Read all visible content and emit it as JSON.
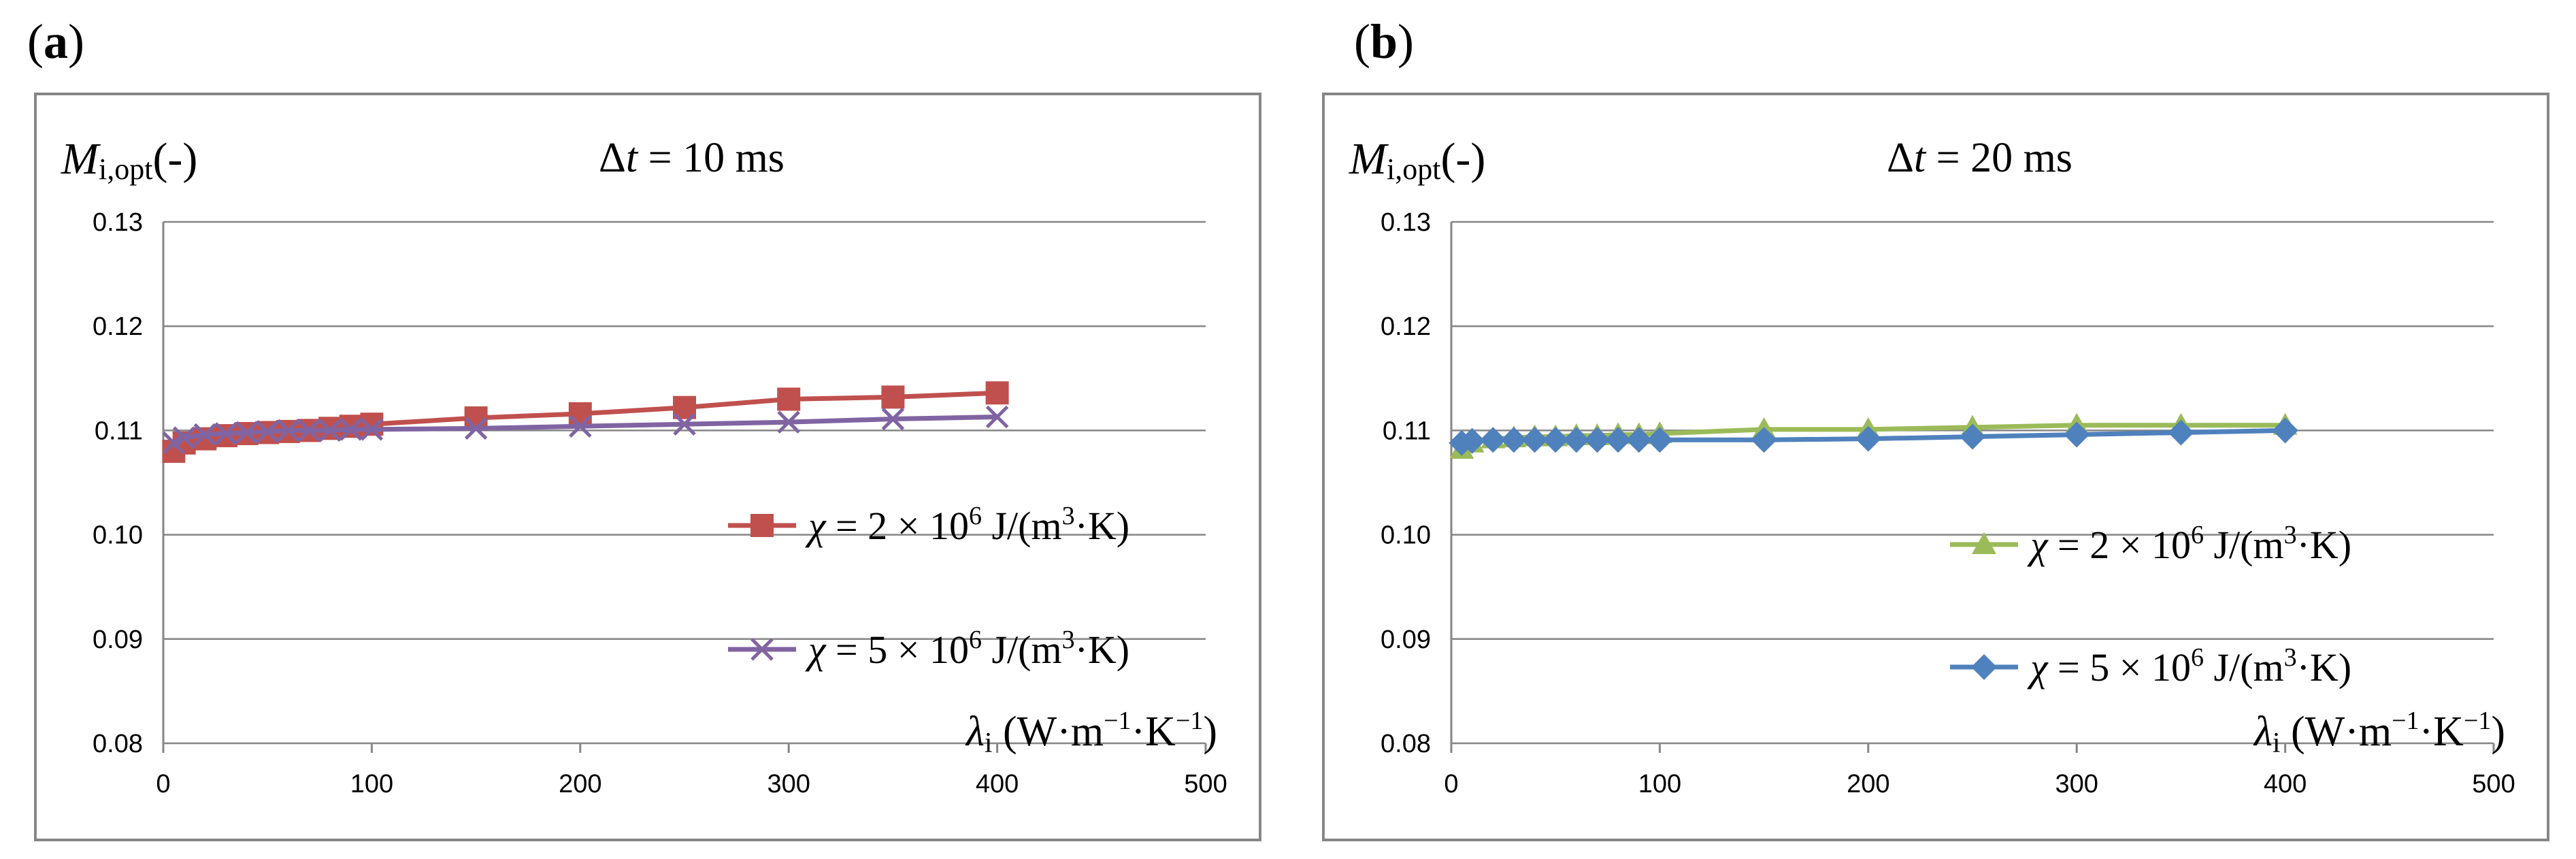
{
  "panels": {
    "a": {
      "label": "a"
    },
    "b": {
      "label": "b"
    }
  },
  "chart_data": [
    {
      "type": "line",
      "panel": "a",
      "title": "Δt = 10 ms",
      "title_prefix": "Δ",
      "title_var": "t",
      "title_rest": " = 10 ms",
      "ylabel_main": "M",
      "ylabel_sub": "i,opt",
      "ylabel_suffix": "(-)",
      "xlabel_main": "λ",
      "xlabel_sub": "i",
      "xlabel_units": " (W·m",
      "xlabel_exp1": "−1",
      "xlabel_mid": "·K",
      "xlabel_exp2": "−1",
      "xlabel_end": ")",
      "xlim": [
        0,
        500
      ],
      "ylim": [
        0.08,
        0.13
      ],
      "xticks": [
        "0",
        "100",
        "200",
        "300",
        "400",
        "500"
      ],
      "yticks": [
        "0.08",
        "0.09",
        "0.10",
        "0.11",
        "0.12",
        "0.13"
      ],
      "grid": true,
      "series": [
        {
          "name": "χ = 2 × 10⁶ J/(m³·K)",
          "chi": "χ",
          "eq": " = 2 × 10",
          "exp": "6",
          "unit": " J/(m",
          "unit_exp": "3",
          "unit_end": "·K)",
          "color": "#c0504d",
          "marker": "square",
          "x": [
            5,
            10,
            20,
            30,
            40,
            50,
            60,
            70,
            80,
            90,
            100,
            150,
            200,
            250,
            300,
            350,
            400
          ],
          "y": [
            0.108,
            0.1088,
            0.1092,
            0.1095,
            0.1097,
            0.1098,
            0.1099,
            0.11,
            0.1102,
            0.1104,
            0.1106,
            0.1112,
            0.1116,
            0.1122,
            0.113,
            0.1132,
            0.1136
          ]
        },
        {
          "name": "χ = 5 × 10⁶ J/(m³·K)",
          "chi": "χ",
          "eq": " = 5 × 10",
          "exp": "6",
          "unit": " J/(m",
          "unit_exp": "3",
          "unit_end": "·K)",
          "color": "#8064a2",
          "marker": "x",
          "x": [
            5,
            10,
            20,
            30,
            40,
            50,
            60,
            70,
            80,
            90,
            100,
            150,
            200,
            250,
            300,
            350,
            400
          ],
          "y": [
            0.1088,
            0.1093,
            0.1096,
            0.1097,
            0.1098,
            0.1099,
            0.11,
            0.11,
            0.11,
            0.1101,
            0.1101,
            0.1102,
            0.1104,
            0.1106,
            0.1108,
            0.1111,
            0.1113
          ]
        }
      ]
    },
    {
      "type": "line",
      "panel": "b",
      "title": "Δt = 20 ms",
      "title_prefix": "Δ",
      "title_var": "t",
      "title_rest": " = 20 ms",
      "ylabel_main": "M",
      "ylabel_sub": "i,opt",
      "ylabel_suffix": "(-)",
      "xlabel_main": "λ",
      "xlabel_sub": "i",
      "xlabel_units": " (W·m",
      "xlabel_exp1": "−1",
      "xlabel_mid": "·K",
      "xlabel_exp2": "−1",
      "xlabel_end": ")",
      "xlim": [
        0,
        500
      ],
      "ylim": [
        0.08,
        0.13
      ],
      "xticks": [
        "0",
        "100",
        "200",
        "300",
        "400",
        "500"
      ],
      "yticks": [
        "0.08",
        "0.09",
        "0.10",
        "0.11",
        "0.12",
        "0.13"
      ],
      "grid": true,
      "series": [
        {
          "name": "χ = 2 × 10⁶ J/(m³·K)",
          "chi": "χ",
          "eq": " = 2 × 10",
          "exp": "6",
          "unit": " J/(m",
          "unit_exp": "3",
          "unit_end": "·K)",
          "color": "#9bbb59",
          "marker": "triangle",
          "x": [
            5,
            10,
            20,
            30,
            40,
            50,
            60,
            70,
            80,
            90,
            100,
            150,
            200,
            250,
            300,
            350,
            400
          ],
          "y": [
            0.1082,
            0.1088,
            0.1092,
            0.1093,
            0.1094,
            0.1094,
            0.1095,
            0.1095,
            0.1096,
            0.1096,
            0.1097,
            0.1101,
            0.1101,
            0.1103,
            0.1105,
            0.1105,
            0.1105
          ]
        },
        {
          "name": "χ = 5 × 10⁶ J/(m³·K)",
          "chi": "χ",
          "eq": " = 5 × 10",
          "exp": "6",
          "unit": " J/(m",
          "unit_exp": "3",
          "unit_end": "·K)",
          "color": "#4f81bd",
          "marker": "diamond",
          "x": [
            5,
            10,
            20,
            30,
            40,
            50,
            60,
            70,
            80,
            90,
            100,
            150,
            200,
            250,
            300,
            350,
            400
          ],
          "y": [
            0.1088,
            0.109,
            0.1091,
            0.1091,
            0.1091,
            0.1091,
            0.1091,
            0.1091,
            0.1091,
            0.1091,
            0.1091,
            0.1091,
            0.1092,
            0.1094,
            0.1096,
            0.1098,
            0.11
          ]
        }
      ]
    }
  ]
}
